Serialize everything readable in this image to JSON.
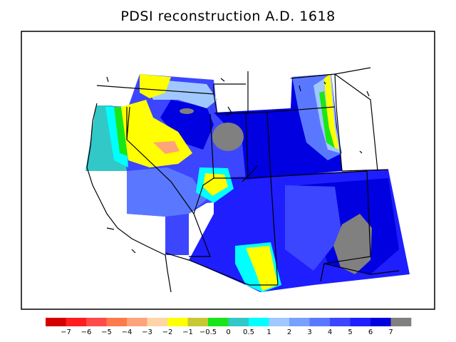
{
  "title": "PDSI reconstruction A.D. 1618",
  "legend": {
    "colors": [
      "#d40000",
      "#ff1d1d",
      "#ff4a4a",
      "#ff7a4a",
      "#ffa37a",
      "#ffd5a8",
      "#ffff00",
      "#c8c832",
      "#19e619",
      "#32c8c8",
      "#00ffff",
      "#a0c8ff",
      "#78a0ff",
      "#5a78ff",
      "#3c46ff",
      "#1e1eff",
      "#0000e0",
      "#808080"
    ],
    "labels": [
      "−7",
      "−6",
      "−5",
      "−4",
      "−3",
      "−2",
      "−1",
      "−0.5",
      "0",
      "0.5",
      "1",
      "2",
      "3",
      "4",
      "5",
      "6",
      "7"
    ]
  },
  "palette": {
    "deep_blue": "#0000e0",
    "blue": "#1e1eff",
    "mid_blue": "#3c46ff",
    "light_blue": "#5a78ff",
    "pale_blue": "#a0c8ff",
    "cyan": "#00ffff",
    "teal": "#32c8c8",
    "green": "#19e619",
    "yellow": "#ffff00",
    "peach": "#ffa37a",
    "gray": "#808080"
  }
}
